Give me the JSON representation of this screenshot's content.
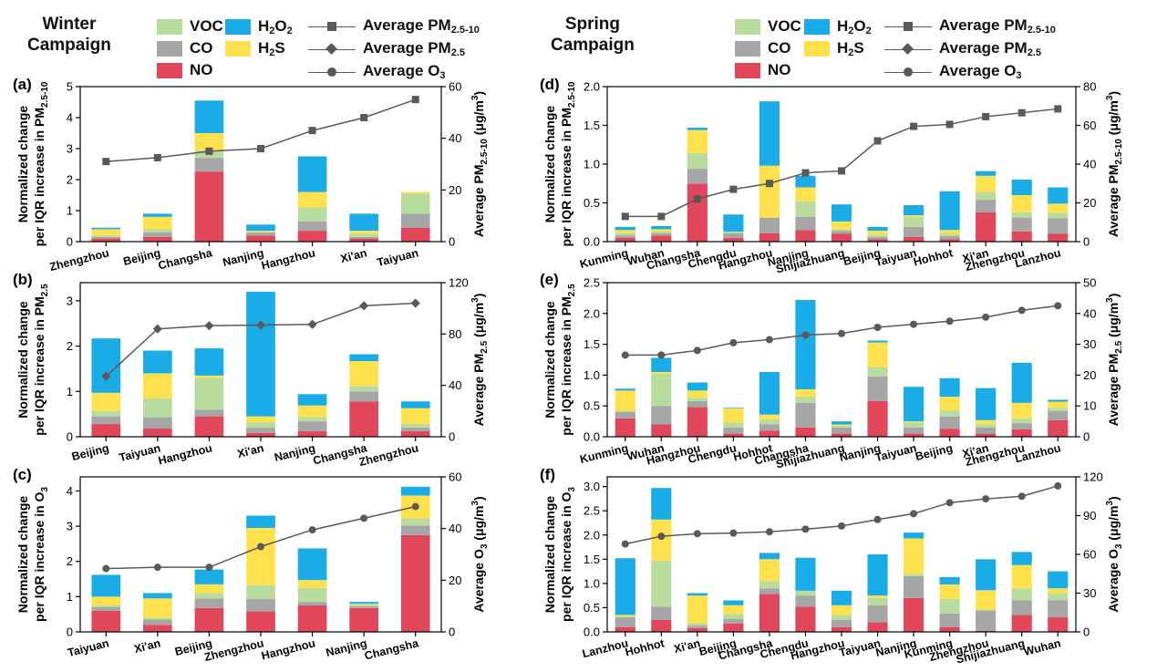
{
  "headers": {
    "winter": [
      "Winter",
      "Campaign"
    ],
    "spring": [
      "Spring",
      "Campaign"
    ]
  },
  "legend": {
    "voc": "VOC",
    "co": "CO",
    "no": "NO",
    "h2o2": "H2O2",
    "h2s": "H2S",
    "avg_pm_coarse": "Average PM2.5-10",
    "avg_pm25": "Average PM2.5",
    "avg_o3": "Average O3"
  },
  "colors": {
    "NO": "#e0475b",
    "CO": "#a6a6a6",
    "VOC": "#b7dc9e",
    "H2S": "#ffe14d",
    "H2O2": "#19ace6",
    "line": "#595959"
  },
  "chart_data": [
    {
      "id": "a",
      "label": "(a)",
      "type": "bar",
      "ylabel": [
        "Normalized change",
        "per IQR increase in PM2.5-10"
      ],
      "y2label": "Average PM2.5-10 (μg/m3)",
      "ylim": [
        0,
        5
      ],
      "yticks": [
        0,
        1,
        2,
        3,
        4,
        5
      ],
      "y2lim": [
        0,
        60
      ],
      "y2ticks": [
        0,
        20,
        40,
        60
      ],
      "marker": "square",
      "categories": [
        "Zhengzhou",
        "Beijing",
        "Changsha",
        "Nanjing",
        "Hangzhou",
        "Xi'an",
        "Taiyuan"
      ],
      "series": [
        {
          "name": "NO",
          "values": [
            0.1,
            0.15,
            2.25,
            0.2,
            0.35,
            0.1,
            0.45
          ]
        },
        {
          "name": "CO",
          "values": [
            0.05,
            0.15,
            0.45,
            0.1,
            0.3,
            0.05,
            0.45
          ]
        },
        {
          "name": "VOC",
          "values": [
            0.05,
            0.1,
            0.25,
            0.0,
            0.45,
            0.1,
            0.65
          ]
        },
        {
          "name": "H2S",
          "values": [
            0.2,
            0.4,
            0.55,
            0.05,
            0.5,
            0.1,
            0.05
          ]
        },
        {
          "name": "H2O2",
          "values": [
            0.05,
            0.1,
            1.05,
            0.2,
            1.15,
            0.55,
            0.0
          ]
        }
      ],
      "line": [
        31,
        32.5,
        35,
        36,
        43,
        48,
        55
      ]
    },
    {
      "id": "b",
      "label": "(b)",
      "type": "bar",
      "ylabel": [
        "Normalized change",
        "per IQR increase in PM2.5"
      ],
      "y2label": "Average PM2.5 (μg/m3)",
      "ylim": [
        0,
        3.4
      ],
      "yticks": [
        0,
        1,
        2,
        3
      ],
      "y2lim": [
        0,
        120
      ],
      "y2ticks": [
        0,
        40,
        80,
        120
      ],
      "marker": "diamond",
      "categories": [
        "Beijing",
        "Taiyuan",
        "Hangzhou",
        "Xi'an",
        "Nanjing",
        "Changsha",
        "Zhengzhou"
      ],
      "series": [
        {
          "name": "NO",
          "values": [
            0.28,
            0.18,
            0.45,
            0.08,
            0.12,
            0.78,
            0.12
          ]
        },
        {
          "name": "CO",
          "values": [
            0.17,
            0.25,
            0.15,
            0.12,
            0.22,
            0.22,
            0.08
          ]
        },
        {
          "name": "VOC",
          "values": [
            0.12,
            0.42,
            0.7,
            0.12,
            0.1,
            0.12,
            0.08
          ]
        },
        {
          "name": "H2S",
          "values": [
            0.4,
            0.55,
            0.05,
            0.13,
            0.25,
            0.55,
            0.35
          ]
        },
        {
          "name": "H2O2",
          "values": [
            1.2,
            0.5,
            0.6,
            2.75,
            0.25,
            0.15,
            0.15
          ]
        }
      ],
      "line": [
        47,
        84,
        86.5,
        87,
        87.5,
        102,
        104
      ]
    },
    {
      "id": "c",
      "label": "(c)",
      "type": "bar",
      "ylabel": [
        "Normalized change",
        "per IQR increase in O3"
      ],
      "y2label": "Average O3 (μg/m3)",
      "ylim": [
        0,
        4.4
      ],
      "yticks": [
        0,
        1,
        2,
        3,
        4
      ],
      "y2lim": [
        0,
        60
      ],
      "y2ticks": [
        0,
        20,
        40,
        60
      ],
      "marker": "circle",
      "categories": [
        "Taiyuan",
        "Xi'an",
        "Beijing",
        "Zhengzhou",
        "Hangzhou",
        "Nanjing",
        "Changsha"
      ],
      "series": [
        {
          "name": "NO",
          "values": [
            0.6,
            0.2,
            0.68,
            0.58,
            0.75,
            0.68,
            2.75
          ]
        },
        {
          "name": "CO",
          "values": [
            0.1,
            0.15,
            0.27,
            0.35,
            0.1,
            0.05,
            0.27
          ]
        },
        {
          "name": "VOC",
          "values": [
            0.05,
            0.05,
            0.15,
            0.4,
            0.4,
            0.05,
            0.2
          ]
        },
        {
          "name": "H2S",
          "values": [
            0.25,
            0.55,
            0.25,
            1.62,
            0.22,
            0.02,
            0.65
          ]
        },
        {
          "name": "H2O2",
          "values": [
            0.62,
            0.15,
            0.42,
            0.35,
            0.9,
            0.05,
            0.25
          ]
        }
      ],
      "line": [
        24.5,
        25,
        25,
        33,
        39.5,
        44,
        48.5
      ]
    },
    {
      "id": "d",
      "label": "(d)",
      "type": "bar",
      "ylabel": [
        "Normalized change",
        "per IQR increase in PM2.5-10"
      ],
      "y2label": "Average PM2.5-10 (μg/m3)",
      "ylim": [
        0,
        2.0
      ],
      "yticks": [
        0,
        0.5,
        1.0,
        1.5,
        2.0
      ],
      "y2lim": [
        0,
        80
      ],
      "y2ticks": [
        0,
        20,
        40,
        60,
        80
      ],
      "marker": "square",
      "categories": [
        "Kunming",
        "Wuhan",
        "Changsha",
        "Chengdu",
        "Hangzhou",
        "Nanjing",
        "Shijiazhuang",
        "Beijing",
        "Taiyuan",
        "Hohhot",
        "Xi'an",
        "Zhengzhou",
        "Lanzhou"
      ],
      "series": [
        {
          "name": "NO",
          "values": [
            0.05,
            0.08,
            0.75,
            0.05,
            0.11,
            0.15,
            0.1,
            0.03,
            0.06,
            0.03,
            0.38,
            0.13,
            0.1
          ]
        },
        {
          "name": "CO",
          "values": [
            0.03,
            0.03,
            0.19,
            0.06,
            0.2,
            0.17,
            0.04,
            0.03,
            0.13,
            0.04,
            0.16,
            0.18,
            0.2
          ]
        },
        {
          "name": "VOC",
          "values": [
            0.03,
            0.02,
            0.2,
            0.02,
            0.0,
            0.2,
            0.02,
            0.03,
            0.13,
            0.03,
            0.1,
            0.07,
            0.07
          ]
        },
        {
          "name": "H2S",
          "values": [
            0.04,
            0.03,
            0.3,
            0.0,
            0.67,
            0.18,
            0.1,
            0.05,
            0.02,
            0.05,
            0.21,
            0.22,
            0.12
          ]
        },
        {
          "name": "H2O2",
          "values": [
            0.04,
            0.04,
            0.03,
            0.22,
            0.83,
            0.15,
            0.22,
            0.05,
            0.13,
            0.5,
            0.06,
            0.2,
            0.21
          ]
        }
      ],
      "line": [
        13,
        13,
        22,
        27,
        30,
        35.5,
        36.5,
        52,
        59.5,
        60.5,
        64.5,
        66.5,
        68.5
      ]
    },
    {
      "id": "e",
      "label": "(e)",
      "type": "bar",
      "ylabel": [
        "Normalized change",
        "per IQR increase in PM2.5"
      ],
      "y2label": "Average PM2.5 (μg/m3)",
      "ylim": [
        0,
        2.5
      ],
      "yticks": [
        0,
        0.5,
        1.0,
        1.5,
        2.0,
        2.5
      ],
      "y2lim": [
        0,
        50
      ],
      "y2ticks": [
        0,
        10,
        20,
        30,
        40,
        50
      ],
      "marker": "circle",
      "categories": [
        "Kunming",
        "Wuhan",
        "Hangzhou",
        "Chengdu",
        "Hohhot",
        "Changsha",
        "Shijiazhuang",
        "Nanjing",
        "Taiyuan",
        "Beijing",
        "Xi'an",
        "Zhengzhou",
        "Lanzhou"
      ],
      "series": [
        {
          "name": "NO",
          "values": [
            0.3,
            0.2,
            0.48,
            0.05,
            0.1,
            0.15,
            0.05,
            0.58,
            0.05,
            0.13,
            0.05,
            0.12,
            0.27
          ]
        },
        {
          "name": "CO",
          "values": [
            0.1,
            0.3,
            0.1,
            0.1,
            0.1,
            0.4,
            0.1,
            0.4,
            0.1,
            0.2,
            0.1,
            0.1,
            0.15
          ]
        },
        {
          "name": "VOC",
          "values": [
            0.02,
            0.52,
            0.05,
            0.08,
            0.08,
            0.1,
            0.03,
            0.15,
            0.08,
            0.1,
            0.05,
            0.08,
            0.05
          ]
        },
        {
          "name": "H2S",
          "values": [
            0.33,
            0.03,
            0.12,
            0.23,
            0.08,
            0.12,
            0.02,
            0.4,
            0.02,
            0.22,
            0.07,
            0.25,
            0.1
          ]
        },
        {
          "name": "H2O2",
          "values": [
            0.03,
            0.23,
            0.13,
            0.01,
            0.69,
            1.45,
            0.05,
            0.03,
            0.56,
            0.3,
            0.52,
            0.65,
            0.03
          ]
        }
      ],
      "line": [
        26.5,
        26.5,
        28,
        30.5,
        31.5,
        33,
        33.5,
        35.5,
        36.5,
        37.5,
        38.8,
        41,
        42.5
      ]
    },
    {
      "id": "f",
      "label": "(f)",
      "type": "bar",
      "ylabel": [
        "Normalized change",
        "per IQR increase in O3"
      ],
      "y2label": "Average O3 (μg/m3)",
      "ylim": [
        0,
        3.2
      ],
      "yticks": [
        0,
        0.5,
        1.0,
        1.5,
        2.0,
        2.5,
        3.0
      ],
      "y2lim": [
        0,
        120
      ],
      "y2ticks": [
        0,
        30,
        60,
        90,
        120
      ],
      "marker": "circle",
      "categories": [
        "Lanzhou",
        "Hohhot",
        "Xi'an",
        "Beijing",
        "Changsha",
        "Chengdu",
        "Hangzhou",
        "Taiyuan",
        "Nanjing",
        "Kunming",
        "Zhengzhou",
        "Shijiazhuang",
        "Wuhan"
      ],
      "series": [
        {
          "name": "NO",
          "values": [
            0.1,
            0.25,
            0.08,
            0.17,
            0.78,
            0.52,
            0.1,
            0.2,
            0.7,
            0.1,
            0.02,
            0.35,
            0.3
          ]
        },
        {
          "name": "CO",
          "values": [
            0.2,
            0.27,
            0.05,
            0.1,
            0.12,
            0.23,
            0.15,
            0.35,
            0.45,
            0.28,
            0.42,
            0.3,
            0.35
          ]
        },
        {
          "name": "VOC",
          "values": [
            0.02,
            0.95,
            0.05,
            0.1,
            0.15,
            0.1,
            0.1,
            0.15,
            0.05,
            0.3,
            0.02,
            0.25,
            0.15
          ]
        },
        {
          "name": "H2S",
          "values": [
            0.03,
            0.85,
            0.57,
            0.18,
            0.45,
            0.0,
            0.2,
            0.05,
            0.73,
            0.3,
            0.4,
            0.48,
            0.1
          ]
        },
        {
          "name": "H2O2",
          "values": [
            1.17,
            0.65,
            0.05,
            0.1,
            0.13,
            0.68,
            0.3,
            0.85,
            0.12,
            0.15,
            0.64,
            0.27,
            0.35
          ]
        }
      ],
      "line": [
        68,
        74,
        76,
        76.5,
        77.5,
        79.5,
        82,
        87,
        91.5,
        100,
        103,
        105,
        113
      ]
    }
  ]
}
